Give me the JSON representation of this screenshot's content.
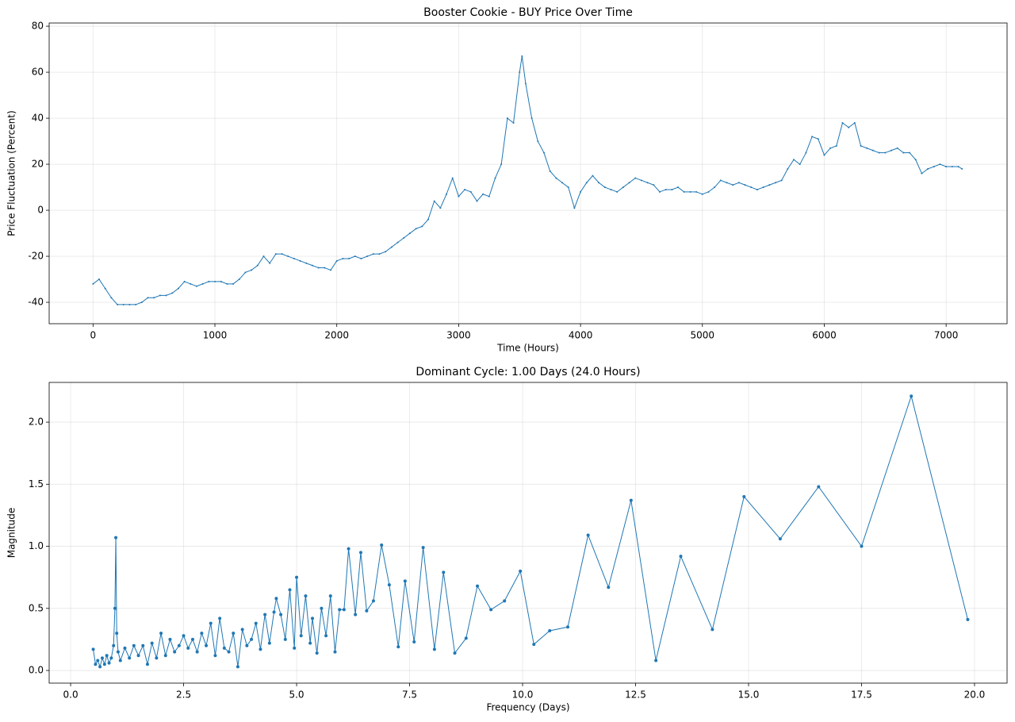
{
  "chart_data": [
    {
      "type": "line",
      "title": "Booster Cookie - BUY Price Over Time",
      "xlabel": "Time (Hours)",
      "ylabel": "Price Fluctuation (Percent)",
      "xlim": [
        -360,
        7500
      ],
      "ylim": [
        -49.3,
        81.4
      ],
      "xticks": [
        0,
        1000,
        2000,
        3000,
        4000,
        5000,
        6000,
        7000
      ],
      "yticks": [
        -40,
        -20,
        0,
        20,
        40,
        60,
        80
      ],
      "grid": true,
      "marker_size": 1,
      "series": [
        {
          "color": "#1f77b4",
          "x": [
            0,
            50,
            100,
            150,
            200,
            250,
            300,
            350,
            400,
            450,
            500,
            550,
            600,
            650,
            700,
            750,
            800,
            850,
            900,
            950,
            1000,
            1050,
            1100,
            1150,
            1200,
            1250,
            1300,
            1350,
            1400,
            1450,
            1500,
            1550,
            1600,
            1650,
            1700,
            1750,
            1800,
            1850,
            1900,
            1950,
            2000,
            2050,
            2100,
            2150,
            2200,
            2250,
            2300,
            2350,
            2400,
            2450,
            2500,
            2550,
            2600,
            2650,
            2700,
            2750,
            2800,
            2850,
            2900,
            2950,
            3000,
            3050,
            3100,
            3150,
            3200,
            3250,
            3300,
            3350,
            3400,
            3450,
            3500,
            3520,
            3550,
            3600,
            3650,
            3700,
            3750,
            3800,
            3850,
            3900,
            3950,
            4000,
            4050,
            4100,
            4150,
            4200,
            4250,
            4300,
            4350,
            4400,
            4450,
            4500,
            4550,
            4600,
            4650,
            4700,
            4750,
            4800,
            4850,
            4900,
            4950,
            5000,
            5050,
            5100,
            5150,
            5200,
            5250,
            5300,
            5350,
            5400,
            5450,
            5500,
            5550,
            5600,
            5650,
            5700,
            5750,
            5800,
            5850,
            5900,
            5950,
            6000,
            6050,
            6100,
            6150,
            6200,
            6250,
            6300,
            6350,
            6400,
            6450,
            6500,
            6550,
            6600,
            6650,
            6700,
            6750,
            6800,
            6850,
            6900,
            6950,
            7000,
            7050,
            7100,
            7130
          ],
          "values": [
            -32,
            -30,
            -34,
            -38,
            -41,
            -41,
            -41,
            -41,
            -40,
            -38,
            -38,
            -37,
            -37,
            -36,
            -34,
            -31,
            -32,
            -33,
            -32,
            -31,
            -31,
            -31,
            -32,
            -32,
            -30,
            -27,
            -26,
            -24,
            -20,
            -23,
            -19,
            -19,
            -20,
            -21,
            -22,
            -23,
            -24,
            -25,
            -25,
            -26,
            -22,
            -21,
            -21,
            -20,
            -21,
            -20,
            -19,
            -19,
            -18,
            -16,
            -14,
            -12,
            -10,
            -8,
            -7,
            -4,
            4,
            1,
            7,
            14,
            6,
            9,
            8,
            4,
            7,
            6,
            14,
            20,
            40,
            38,
            60,
            67,
            55,
            40,
            30,
            25,
            17,
            14,
            12,
            10,
            1,
            8,
            12,
            15,
            12,
            10,
            9,
            8,
            10,
            12,
            14,
            13,
            12,
            11,
            8,
            9,
            9,
            10,
            8,
            8,
            8,
            7,
            8,
            10,
            13,
            12,
            11,
            12,
            11,
            10,
            9,
            10,
            11,
            12,
            13,
            18,
            22,
            20,
            25,
            32,
            31,
            24,
            27,
            28,
            38,
            36,
            38,
            28,
            27,
            26,
            25,
            25,
            26,
            27,
            25,
            25,
            22,
            16,
            18,
            19,
            20,
            19,
            19,
            19,
            18
          ]
        }
      ]
    },
    {
      "type": "line",
      "title": "Dominant Cycle: 1.00 Days (24.0 Hours)",
      "xlabel": "Frequency (Days)",
      "ylabel": "Magnitude",
      "xlim": [
        -0.475,
        20.72
      ],
      "ylim": [
        -0.102,
        2.32
      ],
      "xticks": [
        {
          "value": 0,
          "label": "0.0"
        },
        2.5,
        {
          "value": 5,
          "label": "5.0"
        },
        7.5,
        {
          "value": 10,
          "label": "10.0"
        },
        12.5,
        {
          "value": 15,
          "label": "15.0"
        },
        17.5,
        {
          "value": 20,
          "label": "20.0"
        }
      ],
      "yticks": [
        {
          "value": 0,
          "label": "0.0"
        },
        0.5,
        {
          "value": 1,
          "label": "1.0"
        },
        1.5,
        {
          "value": 2,
          "label": "2.0"
        }
      ],
      "grid": true,
      "marker_size": 2,
      "series": [
        {
          "color": "#1f77b4",
          "x": [
            0.5,
            0.55,
            0.6,
            0.65,
            0.7,
            0.75,
            0.8,
            0.85,
            0.9,
            0.95,
            0.98,
            1.0,
            1.02,
            1.05,
            1.1,
            1.2,
            1.3,
            1.4,
            1.5,
            1.6,
            1.7,
            1.8,
            1.9,
            2.0,
            2.1,
            2.2,
            2.3,
            2.4,
            2.5,
            2.6,
            2.7,
            2.8,
            2.9,
            3.0,
            3.1,
            3.2,
            3.3,
            3.4,
            3.5,
            3.6,
            3.7,
            3.8,
            3.9,
            4.0,
            4.1,
            4.2,
            4.3,
            4.4,
            4.5,
            4.55,
            4.65,
            4.75,
            4.85,
            4.95,
            5.0,
            5.1,
            5.2,
            5.3,
            5.35,
            5.45,
            5.55,
            5.65,
            5.75,
            5.85,
            5.95,
            6.05,
            6.15,
            6.3,
            6.42,
            6.55,
            6.7,
            6.88,
            7.05,
            7.25,
            7.4,
            7.6,
            7.8,
            8.05,
            8.25,
            8.5,
            8.75,
            9.0,
            9.3,
            9.6,
            9.95,
            10.25,
            10.6,
            11.0,
            11.45,
            11.9,
            12.4,
            12.95,
            13.5,
            14.2,
            14.9,
            15.7,
            16.55,
            17.5,
            18.6,
            19.85
          ],
          "values": [
            0.17,
            0.05,
            0.08,
            0.03,
            0.1,
            0.05,
            0.12,
            0.06,
            0.1,
            0.2,
            0.5,
            1.07,
            0.3,
            0.15,
            0.08,
            0.18,
            0.1,
            0.2,
            0.12,
            0.2,
            0.05,
            0.22,
            0.1,
            0.3,
            0.12,
            0.25,
            0.15,
            0.2,
            0.28,
            0.18,
            0.25,
            0.15,
            0.3,
            0.2,
            0.38,
            0.12,
            0.42,
            0.18,
            0.15,
            0.3,
            0.03,
            0.33,
            0.2,
            0.25,
            0.38,
            0.17,
            0.45,
            0.22,
            0.47,
            0.58,
            0.45,
            0.25,
            0.65,
            0.18,
            0.75,
            0.28,
            0.6,
            0.22,
            0.42,
            0.14,
            0.5,
            0.28,
            0.6,
            0.15,
            0.49,
            0.49,
            0.98,
            0.45,
            0.95,
            0.48,
            0.56,
            1.01,
            0.69,
            0.19,
            0.72,
            0.23,
            0.99,
            0.17,
            0.79,
            0.14,
            0.26,
            0.68,
            0.49,
            0.56,
            0.8,
            0.21,
            0.32,
            0.35,
            1.09,
            0.67,
            1.37,
            0.08,
            0.92,
            0.33,
            1.4,
            1.06,
            1.48,
            1.0,
            2.21,
            0.41
          ]
        }
      ]
    }
  ]
}
